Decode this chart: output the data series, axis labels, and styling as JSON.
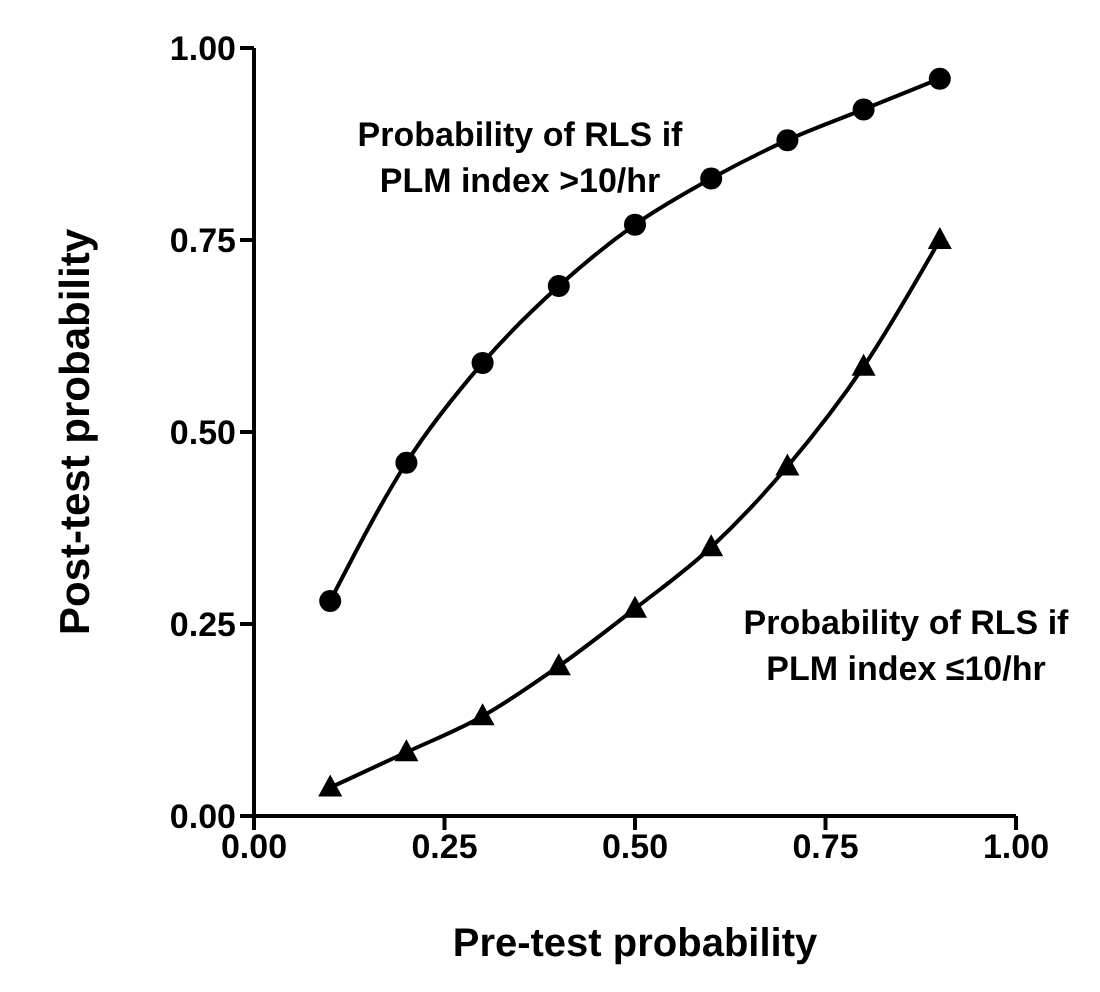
{
  "chart_data": {
    "type": "line",
    "xlabel": "Pre-test probability",
    "ylabel": "Post-test probability",
    "x": [
      0.1,
      0.2,
      0.3,
      0.4,
      0.5,
      0.6,
      0.7,
      0.8,
      0.9
    ],
    "series": [
      {
        "name": "Probability of RLS if PLM index >10/hr",
        "color": "#000000",
        "marker": "circle",
        "values": [
          0.28,
          0.46,
          0.59,
          0.69,
          0.77,
          0.83,
          0.88,
          0.92,
          0.96
        ]
      },
      {
        "name": "Probability of RLS if PLM index ≤10/hr",
        "color": "#000000",
        "marker": "triangle",
        "values": [
          0.037,
          0.083,
          0.13,
          0.195,
          0.27,
          0.35,
          0.455,
          0.585,
          0.75
        ]
      }
    ],
    "xlim": [
      0,
      1
    ],
    "xticks": [
      {
        "value": 0,
        "label": "0.00"
      },
      {
        "value": 0.25,
        "label": "0.25"
      },
      {
        "value": 0.5,
        "label": "0.50"
      },
      {
        "value": 0.75,
        "label": "0.75"
      },
      {
        "value": 1,
        "label": "1.00"
      }
    ],
    "ylim": [
      0,
      1
    ],
    "yticks": [
      {
        "value": 0,
        "label": "0.00"
      },
      {
        "value": 0.25,
        "label": "0.25"
      },
      {
        "value": 0.5,
        "label": "0.50"
      },
      {
        "value": 0.75,
        "label": "0.75"
      },
      {
        "value": 1,
        "label": "1.00"
      }
    ],
    "grid": false,
    "legend": false,
    "line_style": "solid"
  }
}
